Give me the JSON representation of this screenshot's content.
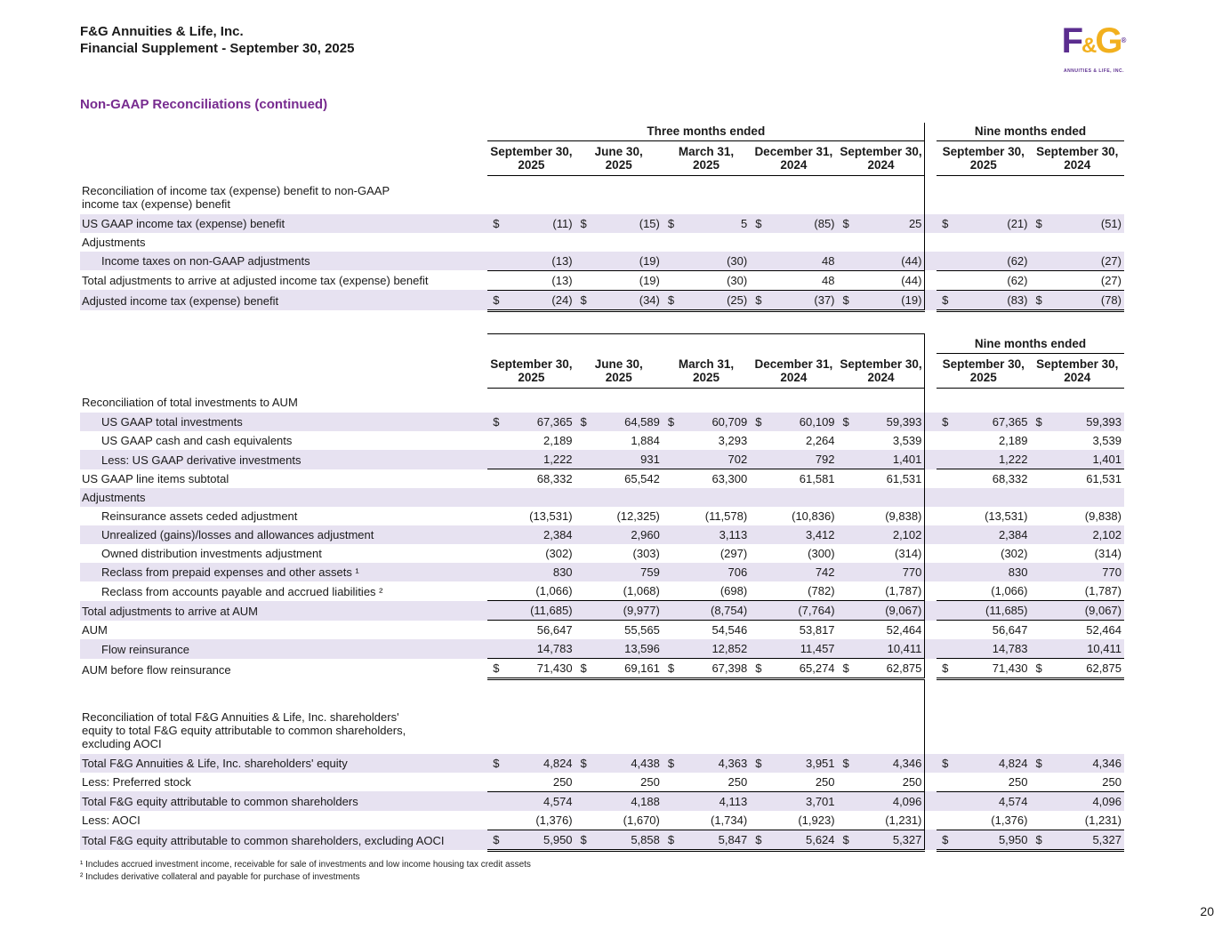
{
  "page": {
    "company": "F&G Annuities & Life, Inc.",
    "subtitle": "Financial Supplement - September 30, 2025",
    "title": "Non-GAAP Reconciliations (continued)",
    "page_number": "20",
    "footnotes": [
      "¹ Includes accrued investment income, receivable for sale of investments and low income housing tax credit assets",
      "² Includes derivative collateral and payable for purchase of investments"
    ]
  },
  "logo": {
    "f": "F",
    "amp": "&",
    "g": "G",
    "reg": "®",
    "caption": "ANNUITIES & LIFE, INC."
  },
  "colors": {
    "accent_purple": "#772b8f",
    "row_shade": "#e7e2f1",
    "logo_purple": "#5b2d8f",
    "logo_gold": "#f2b01e",
    "rule": "#000000"
  },
  "columns": {
    "group_three_months": "Three months ended",
    "group_nine_months": "Nine months ended",
    "dates": [
      {
        "l1": "September 30,",
        "l2": "2025"
      },
      {
        "l1": "June 30,",
        "l2": "2025"
      },
      {
        "l1": "March 31,",
        "l2": "2025"
      },
      {
        "l1": "December 31,",
        "l2": "2024"
      },
      {
        "l1": "September 30,",
        "l2": "2024"
      },
      {
        "l1": "September 30,",
        "l2": "2025"
      },
      {
        "l1": "September 30,",
        "l2": "2024"
      }
    ]
  },
  "tables": [
    {
      "name": "income-tax-reconciliation-table",
      "header": "groups",
      "rows": [
        {
          "section": true,
          "label": "Reconciliation of income tax (expense) benefit to non-GAAP\nincome tax (expense) benefit"
        },
        {
          "label": "US GAAP income tax (expense) benefit",
          "shaded": true,
          "dollar": true,
          "values": [
            "(11)",
            "(15)",
            "5",
            "(85)",
            "25",
            "(21)",
            "(51)"
          ]
        },
        {
          "label": "Adjustments",
          "bold": true
        },
        {
          "label": "Income taxes on non-GAAP adjustments",
          "indent": true,
          "shaded": true,
          "rule_below": true,
          "values": [
            "(13)",
            "(19)",
            "(30)",
            "48",
            "(44)",
            "(62)",
            "(27)"
          ]
        },
        {
          "label": "Total adjustments to arrive at adjusted income tax (expense) benefit",
          "rule_below": true,
          "values": [
            "(13)",
            "(19)",
            "(30)",
            "48",
            "(44)",
            "(62)",
            "(27)"
          ]
        },
        {
          "label": "Adjusted income tax (expense) benefit",
          "bold": true,
          "shaded": true,
          "dollar": true,
          "double_rule_below": true,
          "values": [
            "(24)",
            "(34)",
            "(25)",
            "(37)",
            "(19)",
            "(83)",
            "(78)"
          ]
        }
      ]
    },
    {
      "name": "investments-and-equity-reconciliation-table",
      "header": "nine-only",
      "rows": [
        {
          "section": true,
          "label": "Reconciliation of total investments to AUM"
        },
        {
          "label": "US GAAP total investments",
          "indent": true,
          "shaded": true,
          "dollar": true,
          "values": [
            "67,365",
            "64,589",
            "60,709",
            "60,109",
            "59,393",
            "67,365",
            "59,393"
          ]
        },
        {
          "label": "US GAAP cash and cash equivalents",
          "indent": true,
          "values": [
            "2,189",
            "1,884",
            "3,293",
            "2,264",
            "3,539",
            "2,189",
            "3,539"
          ]
        },
        {
          "label": "Less: US GAAP derivative investments",
          "indent": true,
          "shaded": true,
          "rule_below": true,
          "values": [
            "1,222",
            "931",
            "702",
            "792",
            "1,401",
            "1,222",
            "1,401"
          ]
        },
        {
          "label": "US GAAP line items subtotal",
          "values": [
            "68,332",
            "65,542",
            "63,300",
            "61,581",
            "61,531",
            "68,332",
            "61,531"
          ]
        },
        {
          "label": "Adjustments",
          "bold": true,
          "shaded": true
        },
        {
          "label": "Reinsurance assets ceded adjustment",
          "indent": true,
          "values": [
            "(13,531)",
            "(12,325)",
            "(11,578)",
            "(10,836)",
            "(9,838)",
            "(13,531)",
            "(9,838)"
          ]
        },
        {
          "label": "Unrealized (gains)/losses and allowances adjustment",
          "indent": true,
          "shaded": true,
          "values": [
            "2,384",
            "2,960",
            "3,113",
            "3,412",
            "2,102",
            "2,384",
            "2,102"
          ]
        },
        {
          "label": "Owned distribution investments adjustment",
          "indent": true,
          "values": [
            "(302)",
            "(303)",
            "(297)",
            "(300)",
            "(314)",
            "(302)",
            "(314)"
          ]
        },
        {
          "label": "Reclass from prepaid expenses and other assets ¹",
          "indent": true,
          "shaded": true,
          "values": [
            "830",
            "759",
            "706",
            "742",
            "770",
            "830",
            "770"
          ]
        },
        {
          "label": "Reclass from accounts payable and accrued liabilities ²",
          "indent": true,
          "rule_below": true,
          "values": [
            "(1,066)",
            "(1,068)",
            "(698)",
            "(782)",
            "(1,787)",
            "(1,066)",
            "(1,787)"
          ]
        },
        {
          "label": "Total adjustments to arrive at AUM",
          "shaded": true,
          "rule_below": true,
          "values": [
            "(11,685)",
            "(9,977)",
            "(8,754)",
            "(7,764)",
            "(9,067)",
            "(11,685)",
            "(9,067)"
          ]
        },
        {
          "label": "AUM",
          "bold": true,
          "values": [
            "56,647",
            "55,565",
            "54,546",
            "53,817",
            "52,464",
            "56,647",
            "52,464"
          ]
        },
        {
          "label": "Flow reinsurance",
          "indent": true,
          "shaded": true,
          "rule_below": true,
          "values": [
            "14,783",
            "13,596",
            "12,852",
            "11,457",
            "10,411",
            "14,783",
            "10,411"
          ]
        },
        {
          "label": "AUM before flow reinsurance",
          "bold": true,
          "dollar": true,
          "double_rule_below": true,
          "values": [
            "71,430",
            "69,161",
            "67,398",
            "65,274",
            "62,875",
            "71,430",
            "62,875"
          ]
        },
        {
          "gap": true
        },
        {
          "section": true,
          "label": "Reconciliation of total F&G Annuities & Life, Inc. shareholders'\nequity to total F&G equity attributable to common shareholders,\nexcluding AOCI"
        },
        {
          "label": "Total F&G Annuities & Life, Inc. shareholders' equity",
          "shaded": true,
          "dollar": true,
          "values": [
            "4,824",
            "4,438",
            "4,363",
            "3,951",
            "4,346",
            "4,824",
            "4,346"
          ]
        },
        {
          "label": "Less: Preferred stock",
          "rule_below": true,
          "values": [
            "250",
            "250",
            "250",
            "250",
            "250",
            "250",
            "250"
          ]
        },
        {
          "label": "Total F&G equity attributable to common shareholders",
          "shaded": true,
          "values": [
            "4,574",
            "4,188",
            "4,113",
            "3,701",
            "4,096",
            "4,574",
            "4,096"
          ]
        },
        {
          "label": "Less: AOCI",
          "rule_below": true,
          "values": [
            "(1,376)",
            "(1,670)",
            "(1,734)",
            "(1,923)",
            "(1,231)",
            "(1,376)",
            "(1,231)"
          ]
        },
        {
          "label": "Total F&G equity attributable to common shareholders, excluding AOCI",
          "bold": true,
          "shaded": true,
          "dollar": true,
          "double_rule_below": true,
          "values": [
            "5,950",
            "5,858",
            "5,847",
            "5,624",
            "5,327",
            "5,950",
            "5,327"
          ]
        }
      ]
    }
  ]
}
